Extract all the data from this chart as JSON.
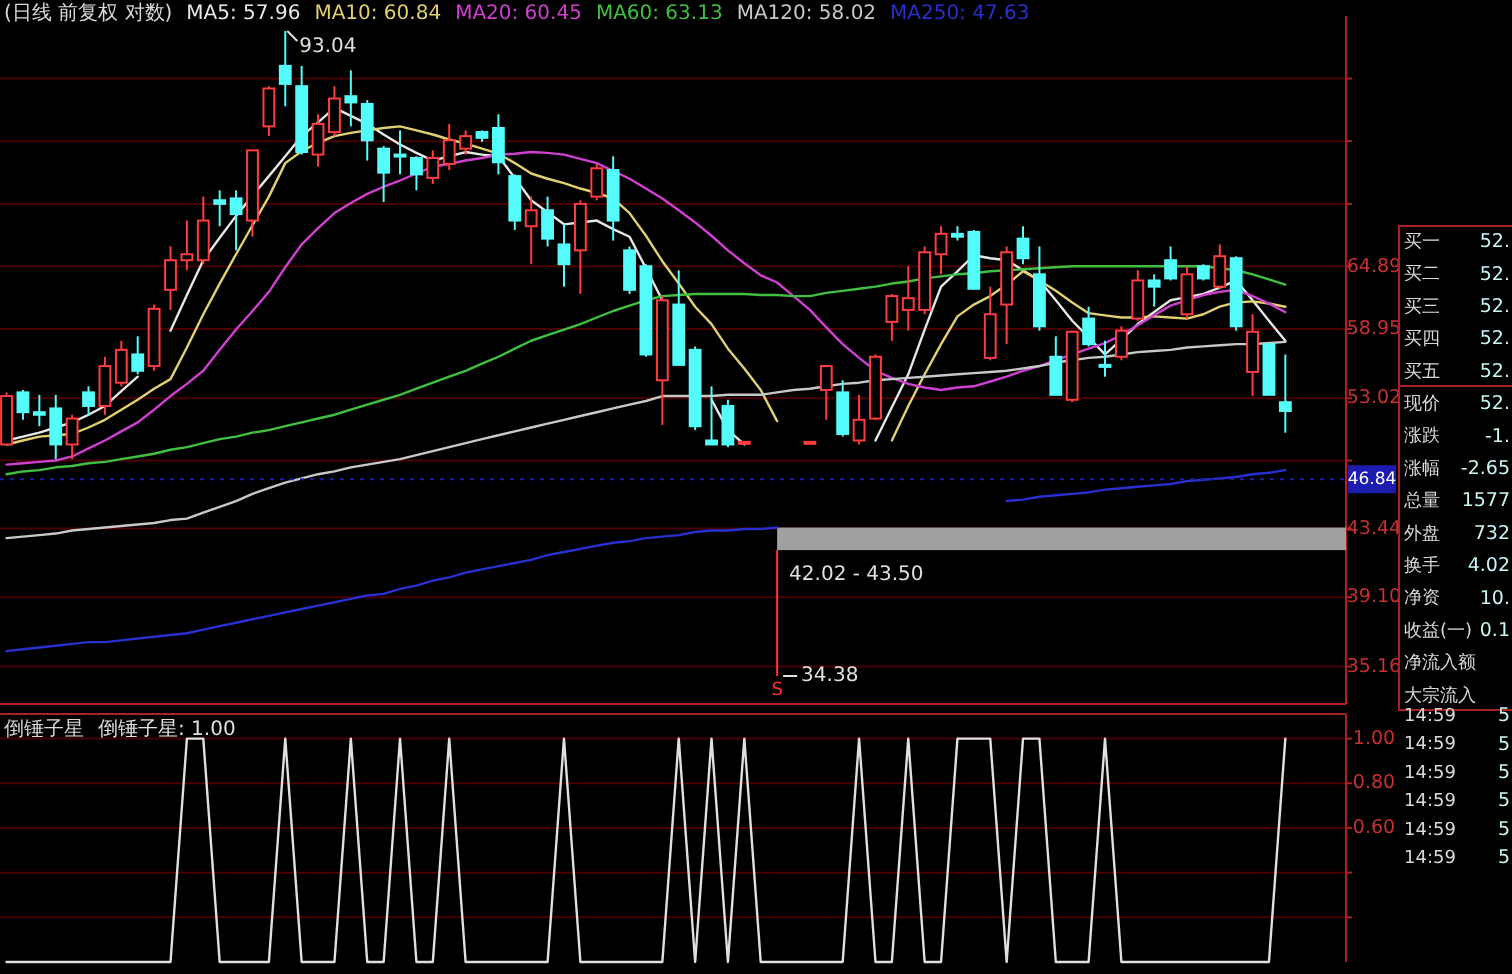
{
  "chart_data": [
    {
      "type": "candlestick",
      "title": "(日线 前复权 对数)",
      "log": true,
      "grid": "y",
      "legend": "top",
      "categories": [
        null,
        null,
        null,
        null,
        null,
        null,
        null,
        null,
        null,
        null,
        null,
        null,
        null,
        null,
        null,
        null,
        null,
        null,
        null,
        null,
        null,
        null,
        null,
        null,
        null,
        null,
        null,
        null,
        null,
        null,
        null,
        null,
        null,
        null,
        null,
        null,
        null,
        null,
        null,
        null,
        null,
        null,
        null,
        null,
        null,
        null,
        null,
        null,
        null,
        null,
        null,
        null,
        null,
        null,
        null,
        null,
        null,
        null,
        null,
        null,
        null,
        null,
        null,
        null,
        null,
        null,
        null,
        null,
        null,
        null,
        null,
        null,
        null,
        null,
        null,
        null,
        null,
        null,
        null
      ],
      "ohlc": [
        [
          49.4,
          53.5,
          49.4,
          53.2
        ],
        [
          53.5,
          53.7,
          51.3,
          51.9
        ],
        [
          51.9,
          53.3,
          50.8,
          51.7
        ],
        [
          52.2,
          53.3,
          48.3,
          49.4
        ],
        [
          49.4,
          51.7,
          48.3,
          51.4
        ],
        [
          53.5,
          54.0,
          51.6,
          52.4
        ],
        [
          52.4,
          56.5,
          51.7,
          55.7
        ],
        [
          54.3,
          57.9,
          54.0,
          57.1
        ],
        [
          56.7,
          58.3,
          55.0,
          55.3
        ],
        [
          55.7,
          61.2,
          55.3,
          60.8
        ],
        [
          62.6,
          66.9,
          60.7,
          65.5
        ],
        [
          65.5,
          69.6,
          64.5,
          66.1
        ],
        [
          65.5,
          72.2,
          65.1,
          69.6
        ],
        [
          71.8,
          72.9,
          69.0,
          71.4
        ],
        [
          72.0,
          72.9,
          66.5,
          70.3
        ],
        [
          69.6,
          77.5,
          67.9,
          77.5
        ],
        [
          80.4,
          85.5,
          79.2,
          85.2
        ],
        [
          88.2,
          93.04,
          82.9,
          85.8
        ],
        [
          85.5,
          88.2,
          77.0,
          77.3
        ],
        [
          77.0,
          81.9,
          75.6,
          80.7
        ],
        [
          79.7,
          85.5,
          79.2,
          83.9
        ],
        [
          84.2,
          87.6,
          80.4,
          83.4
        ],
        [
          83.2,
          83.7,
          76.3,
          78.7
        ],
        [
          77.7,
          78.0,
          71.6,
          74.9
        ],
        [
          77.0,
          79.9,
          74.7,
          76.8
        ],
        [
          76.6,
          76.8,
          72.9,
          74.7
        ],
        [
          74.3,
          77.5,
          73.6,
          76.6
        ],
        [
          75.9,
          80.7,
          75.2,
          78.7
        ],
        [
          77.7,
          79.9,
          77.0,
          79.2
        ],
        [
          79.7,
          79.9,
          78.5,
          79.0
        ],
        [
          80.2,
          81.9,
          74.7,
          76.1
        ],
        [
          74.5,
          74.7,
          68.6,
          69.6
        ],
        [
          69.0,
          72.2,
          65.1,
          70.7
        ],
        [
          70.7,
          72.2,
          66.9,
          67.7
        ],
        [
          67.1,
          69.2,
          62.9,
          65.1
        ],
        [
          66.5,
          71.8,
          62.2,
          71.4
        ],
        [
          72.2,
          75.9,
          71.8,
          75.4
        ],
        [
          75.2,
          76.8,
          67.5,
          69.6
        ],
        [
          66.5,
          66.9,
          62.2,
          62.6
        ],
        [
          64.9,
          65.1,
          56.5,
          56.7
        ],
        [
          54.5,
          62.0,
          50.9,
          61.6
        ],
        [
          61.2,
          64.5,
          55.7,
          55.8
        ],
        [
          57.1,
          57.4,
          50.5,
          50.8
        ],
        [
          49.7,
          54.0,
          49.4,
          49.4
        ],
        [
          52.4,
          52.9,
          49.2,
          49.4
        ],
        [
          49.6,
          49.6,
          49.4,
          49.6
        ],
        null,
        null,
        null,
        [
          49.6,
          49.6,
          49.4,
          49.6
        ],
        [
          53.7,
          55.7,
          51.3,
          55.7
        ],
        [
          53.5,
          54.5,
          50.0,
          50.2
        ],
        [
          49.7,
          53.3,
          49.4,
          51.3
        ],
        [
          51.4,
          56.7,
          51.3,
          56.5
        ],
        [
          59.6,
          62.2,
          57.9,
          62.0
        ],
        [
          60.7,
          64.9,
          58.8,
          61.8
        ],
        [
          60.7,
          66.9,
          60.3,
          66.3
        ],
        [
          66.1,
          69.0,
          64.1,
          68.2
        ],
        [
          68.2,
          69.0,
          67.5,
          67.9
        ],
        [
          68.4,
          68.6,
          62.6,
          62.7
        ],
        [
          56.4,
          62.9,
          56.2,
          60.3
        ],
        [
          61.2,
          66.9,
          57.6,
          66.3
        ],
        [
          67.7,
          69.0,
          65.1,
          65.7
        ],
        [
          64.1,
          66.9,
          58.8,
          59.2
        ],
        [
          56.5,
          58.3,
          53.3,
          53.3
        ],
        [
          52.9,
          58.8,
          52.7,
          58.7
        ],
        [
          59.9,
          61.0,
          57.4,
          57.6
        ],
        [
          55.8,
          57.9,
          54.8,
          55.7
        ],
        [
          56.5,
          59.2,
          56.2,
          58.8
        ],
        [
          59.9,
          64.5,
          59.7,
          63.5
        ],
        [
          63.5,
          64.1,
          61.0,
          62.9
        ],
        [
          65.5,
          66.9,
          63.5,
          63.7
        ],
        [
          60.3,
          64.9,
          59.9,
          64.1
        ],
        [
          64.9,
          65.1,
          63.5,
          63.7
        ],
        [
          62.9,
          67.1,
          62.7,
          65.9
        ],
        [
          65.7,
          65.9,
          58.8,
          59.2
        ],
        [
          55.2,
          60.3,
          53.2,
          58.7
        ],
        [
          57.6,
          57.6,
          53.3,
          53.3
        ],
        [
          52.7,
          56.7,
          50.3,
          52.0
        ]
      ],
      "series": [
        {
          "type": "line",
          "name": "MA5: 57.96",
          "color": "#e6e6e6",
          "values": [
            49.7,
            50.0,
            50.3,
            50.7,
            51.1,
            51.7,
            52.4,
            53.6,
            54.8,
            null,
            58.8,
            62.1,
            65.5,
            67.8,
            70.1,
            72.3,
            74.5,
            76.8,
            79.2,
            80.9,
            82.7,
            81.7,
            80.7,
            79.4,
            78.2,
            77.2,
            76.3,
            76.8,
            77.3,
            77.0,
            76.8,
            74.3,
            71.8,
            70.5,
            69.2,
            69.4,
            69.6,
            68.7,
            67.9,
            64.7,
            61.6,
            null,
            null,
            52.9,
            50.5,
            49.4,
            null,
            null,
            null,
            null,
            null,
            null,
            null,
            49.7,
            52.3,
            55.0,
            58.9,
            62.9,
            64.4,
            66.0,
            65.7,
            65.5,
            64.5,
            63.5,
            61.6,
            59.7,
            58.2,
            56.7,
            58.0,
            59.4,
            60.5,
            61.6,
            61.9,
            62.2,
            62.8,
            63.5,
            61.6,
            59.7,
            57.9
          ]
        },
        {
          "type": "line",
          "name": "MA10: 60.84",
          "color": "#e0d070",
          "values": [
            49.4,
            49.7,
            50.0,
            50.1,
            50.2,
            50.7,
            51.3,
            52.1,
            52.9,
            53.8,
            54.6,
            57.3,
            60.3,
            63.2,
            66.1,
            69.1,
            72.2,
            76.0,
            77.4,
            78.4,
            79.2,
            79.6,
            79.9,
            80.2,
            80.4,
            79.9,
            79.4,
            78.8,
            78.3,
            77.7,
            77.1,
            76.0,
            74.8,
            74.2,
            73.7,
            73.1,
            72.6,
            72.0,
            70.4,
            68.0,
            65.4,
            63.2,
            61.0,
            59.4,
            57.2,
            55.5,
            53.7,
            51.2,
            null,
            null,
            null,
            null,
            null,
            null,
            49.7,
            52.4,
            55.0,
            57.6,
            60.1,
            61.2,
            62.0,
            63.1,
            64.4,
            63.5,
            62.5,
            61.4,
            60.4,
            60.2,
            60.0,
            60.0,
            60.1,
            60.0,
            59.9,
            60.3,
            61.0,
            61.4,
            61.5,
            61.3,
            61.0
          ]
        },
        {
          "type": "line",
          "name": "MA20: 60.45",
          "color": "#d040d0",
          "values": [
            47.9,
            48.0,
            48.1,
            48.2,
            48.5,
            49.1,
            49.7,
            50.4,
            51.1,
            52.1,
            53.2,
            54.2,
            55.3,
            57.1,
            58.9,
            60.6,
            62.4,
            64.8,
            67.1,
            68.8,
            70.4,
            71.5,
            72.5,
            73.3,
            74.0,
            74.8,
            75.6,
            75.9,
            76.3,
            76.6,
            77.0,
            77.1,
            77.3,
            77.2,
            77.0,
            76.5,
            76.0,
            75.1,
            74.2,
            73.1,
            72.0,
            70.7,
            69.4,
            68.0,
            66.5,
            65.2,
            64.0,
            63.3,
            62.0,
            60.7,
            59.1,
            57.6,
            56.4,
            55.3,
            54.7,
            54.2,
            53.9,
            53.7,
            53.9,
            54.0,
            54.4,
            54.8,
            55.3,
            55.7,
            56.2,
            56.7,
            57.2,
            57.7,
            58.4,
            59.3,
            60.2,
            61.1,
            61.6,
            62.1,
            62.4,
            62.6,
            62.0,
            61.3,
            60.5
          ]
        },
        {
          "type": "line",
          "name": "MA60: 63.13",
          "color": "#40c040",
          "values": [
            47.2,
            47.4,
            47.5,
            47.7,
            47.8,
            48.0,
            48.1,
            48.3,
            48.5,
            48.7,
            49.0,
            49.2,
            49.5,
            49.8,
            50.0,
            50.3,
            50.5,
            50.8,
            51.1,
            51.4,
            51.7,
            52.1,
            52.5,
            52.9,
            53.3,
            53.8,
            54.3,
            54.8,
            55.3,
            55.9,
            56.5,
            57.2,
            57.9,
            58.4,
            58.9,
            59.4,
            60.0,
            60.6,
            61.1,
            61.6,
            62.0,
            62.1,
            62.2,
            62.2,
            62.2,
            62.2,
            62.1,
            62.1,
            62.0,
            62.0,
            62.3,
            62.5,
            62.7,
            62.9,
            63.2,
            63.4,
            63.7,
            63.9,
            64.1,
            64.2,
            64.4,
            64.5,
            64.6,
            64.7,
            64.8,
            64.9,
            64.9,
            64.9,
            64.9,
            64.9,
            64.9,
            64.9,
            64.9,
            64.9,
            64.7,
            64.5,
            64.1,
            63.6,
            63.1
          ]
        },
        {
          "type": "line",
          "name": "MA120: 58.02",
          "color": "#c8c8c8",
          "values": [
            42.8,
            42.9,
            43.0,
            43.1,
            43.3,
            43.4,
            43.5,
            43.6,
            43.7,
            43.8,
            44.0,
            44.1,
            44.5,
            44.9,
            45.3,
            45.8,
            46.2,
            46.6,
            46.9,
            47.2,
            47.4,
            47.7,
            47.9,
            48.1,
            48.3,
            48.6,
            48.9,
            49.2,
            49.5,
            49.8,
            50.1,
            50.4,
            50.7,
            51.0,
            51.3,
            51.6,
            51.9,
            52.2,
            52.5,
            52.8,
            53.2,
            53.2,
            53.2,
            53.2,
            53.3,
            53.3,
            53.3,
            53.5,
            53.7,
            53.8,
            54.0,
            54.2,
            54.3,
            54.5,
            54.6,
            54.7,
            54.8,
            54.9,
            55.0,
            55.1,
            55.2,
            55.3,
            55.5,
            55.7,
            56.0,
            56.2,
            56.4,
            56.5,
            56.7,
            56.9,
            57.0,
            57.1,
            57.3,
            57.4,
            57.5,
            57.6,
            57.6,
            57.7,
            57.8
          ]
        },
        {
          "type": "line",
          "name": "MA250: 47.63",
          "color": "#2830d0",
          "values": [
            36.0,
            36.1,
            36.2,
            36.3,
            36.4,
            36.5,
            36.5,
            36.6,
            36.7,
            36.8,
            36.9,
            37.0,
            37.2,
            37.4,
            37.6,
            37.8,
            38.0,
            38.2,
            38.4,
            38.6,
            38.8,
            39.0,
            39.2,
            39.3,
            39.6,
            39.8,
            40.1,
            40.3,
            40.6,
            40.8,
            41.0,
            41.2,
            41.4,
            41.7,
            41.9,
            42.1,
            42.3,
            42.5,
            42.6,
            42.8,
            42.9,
            43.0,
            43.2,
            43.3,
            43.3,
            43.4,
            43.4,
            43.5,
            null,
            null,
            null,
            null,
            null,
            null,
            null,
            null,
            null,
            null,
            null,
            null,
            null,
            45.3,
            45.4,
            45.6,
            45.7,
            45.8,
            45.9,
            46.1,
            46.2,
            46.3,
            46.4,
            46.5,
            46.7,
            46.8,
            46.9,
            47.0,
            47.2,
            47.3,
            47.5
          ]
        }
      ],
      "ylim": [
        33.2,
        95.2
      ],
      "yticks": [
        {
          "value": 86.5,
          "label": null
        },
        {
          "value": 78.6,
          "label": null
        },
        {
          "value": 71.4,
          "label": null
        },
        64.89,
        58.95,
        53.02,
        {
          "value": 48.2,
          "label": null
        },
        43.44,
        {
          "value": 39.1,
          "label": "39.10"
        },
        35.16
      ],
      "bands": [
        {
          "axis": "y",
          "from": 42.02,
          "to": 43.5,
          "label": "42.02 - 43.50",
          "color": "#a0a0a0"
        }
      ],
      "ref_lines": [
        {
          "axis": "y",
          "value": 46.84,
          "label": "46.84",
          "color": "#1c1cb0"
        }
      ],
      "annotations": [
        "93.04",
        "34.38",
        "S"
      ]
    },
    {
      "type": "line",
      "title": "倒锤子星",
      "grid": "y",
      "legend": "top left",
      "categories": [
        null,
        null,
        null,
        null,
        null,
        null,
        null,
        null,
        null,
        null,
        null,
        null,
        null,
        null,
        null,
        null,
        null,
        null,
        null,
        null,
        null,
        null,
        null,
        null,
        null,
        null,
        null,
        null,
        null,
        null,
        null,
        null,
        null,
        null,
        null,
        null,
        null,
        null,
        null,
        null,
        null,
        null,
        null,
        null,
        null,
        null,
        null,
        null,
        null,
        null,
        null,
        null,
        null,
        null,
        null,
        null,
        null,
        null,
        null,
        null,
        null,
        null,
        null,
        null,
        null,
        null,
        null,
        null,
        null,
        null,
        null,
        null,
        null,
        null,
        null,
        null,
        null,
        null,
        null
      ],
      "series": [
        {
          "name": "倒锤子星: 1.00",
          "color": "#e0e0e0",
          "values": [
            0,
            0,
            0,
            0,
            0,
            0,
            0,
            0,
            0,
            0,
            0,
            1,
            1,
            0,
            0,
            0,
            0,
            1,
            0,
            0,
            0,
            1,
            0,
            0,
            1,
            0,
            0,
            1,
            0,
            0,
            0,
            0,
            0,
            0,
            1,
            0,
            0,
            0,
            0,
            0,
            0,
            1,
            0,
            1,
            0,
            1,
            0,
            0,
            0,
            0,
            0,
            0,
            1,
            0,
            0,
            1,
            0,
            0,
            1,
            1,
            1,
            0,
            1,
            1,
            0,
            0,
            0,
            1,
            0,
            0,
            0,
            0,
            0,
            0,
            0,
            0,
            0,
            0,
            1
          ]
        }
      ],
      "ylim": [
        0,
        1.11
      ],
      "yticks": [
        {
          "value": 1,
          "label": "1.00"
        },
        {
          "value": 0.8,
          "label": "0.80"
        },
        {
          "value": 0.6,
          "label": "0.60"
        },
        {
          "value": 0.4,
          "label": null
        },
        {
          "value": 0.2,
          "label": null
        }
      ]
    },
    {
      "type": "other",
      "annotations": [
        "买一 52.",
        "买二 52.",
        "买三 52.",
        "买四 52.",
        "买五 52.",
        "现价 52.",
        "涨跌 -1.",
        "涨幅 -2.65",
        "总量 1577",
        "外盘 732",
        "换手 4.02",
        "净资 10.",
        "收益(一) 0.1",
        "净流入额",
        "大宗流入",
        "14:59 5",
        "14:59 5",
        "14:59 5",
        "14:59 5",
        "14:59 5",
        "14:59 5"
      ]
    }
  ]
}
